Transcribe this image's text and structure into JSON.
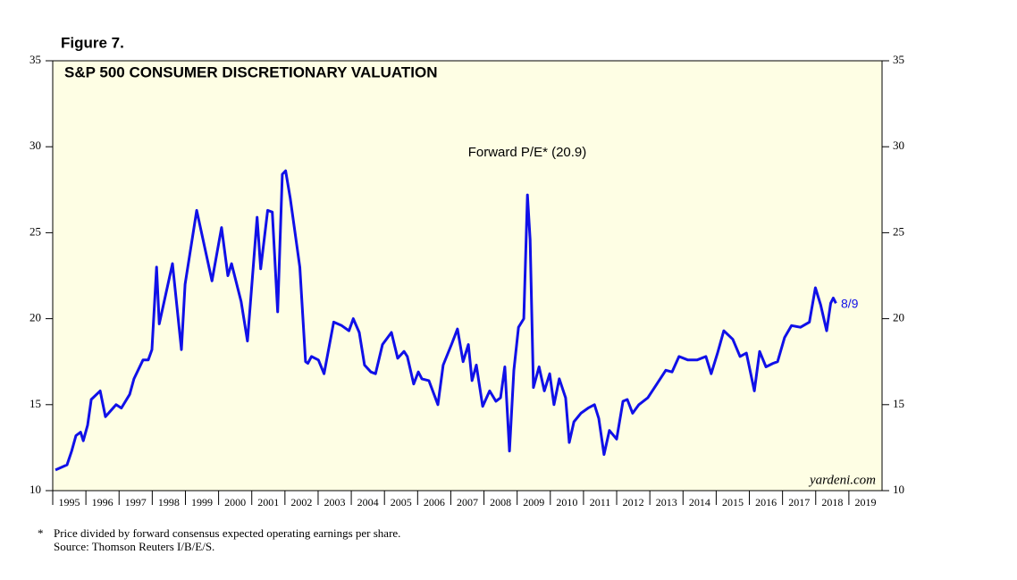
{
  "chart_data": {
    "type": "line",
    "figure_label": "Figure 7.",
    "title": "S&P 500 CONSUMER DISCRETIONARY VALUATION",
    "annotations": [
      "Forward P/E* (20.9)",
      "8/9"
    ],
    "watermark": "yardeni.com",
    "footnotes": [
      "*",
      "Price divided by forward consensus expected operating earnings per share.",
      "Source: Thomson Reuters I/B/E/S."
    ],
    "color": "#1010e8",
    "xlim": [
      1995,
      2020
    ],
    "xticks": [
      {
        "value": 1995,
        "label": "1995"
      },
      {
        "value": 1996,
        "label": "1996"
      },
      {
        "value": 1997,
        "label": "1997"
      },
      {
        "value": 1998,
        "label": "1998"
      },
      {
        "value": 1999,
        "label": "1999"
      },
      {
        "value": 2000,
        "label": "2000"
      },
      {
        "value": 2001,
        "label": "2001"
      },
      {
        "value": 2002,
        "label": "2002"
      },
      {
        "value": 2003,
        "label": "2003"
      },
      {
        "value": 2004,
        "label": "2004"
      },
      {
        "value": 2005,
        "label": "2005"
      },
      {
        "value": 2006,
        "label": "2006"
      },
      {
        "value": 2007,
        "label": "2007"
      },
      {
        "value": 2008,
        "label": "2008"
      },
      {
        "value": 2009,
        "label": "2009"
      },
      {
        "value": 2010,
        "label": "2010"
      },
      {
        "value": 2011,
        "label": "2011"
      },
      {
        "value": 2012,
        "label": "2012"
      },
      {
        "value": 2013,
        "label": "2013"
      },
      {
        "value": 2014,
        "label": "2014"
      },
      {
        "value": 2015,
        "label": "2015"
      },
      {
        "value": 2016,
        "label": "2016"
      },
      {
        "value": 2017,
        "label": "2017"
      },
      {
        "value": 2018,
        "label": "2018"
      },
      {
        "value": 2019,
        "label": "2019"
      }
    ],
    "ylim": [
      10,
      35
    ],
    "yticks": [
      10,
      15,
      20,
      25,
      30,
      35
    ],
    "x": [
      1995.08,
      1995.43,
      1995.57,
      1995.7,
      1995.84,
      1995.92,
      1996.05,
      1996.16,
      1996.43,
      1996.59,
      1996.91,
      1997.07,
      1997.32,
      1997.45,
      1997.72,
      1997.88,
      1997.99,
      1998.13,
      1998.21,
      1998.61,
      1998.88,
      1998.99,
      1999.34,
      1999.8,
      2000.09,
      2000.28,
      2000.39,
      2000.68,
      2000.87,
      2001.16,
      2001.27,
      2001.48,
      2001.62,
      2001.78,
      2001.92,
      2002.02,
      2002.16,
      2002.45,
      2002.62,
      2002.69,
      2002.8,
      2003.01,
      2003.18,
      2003.47,
      2003.71,
      2003.93,
      2004.06,
      2004.24,
      2004.4,
      2004.59,
      2004.73,
      2004.94,
      2005.21,
      2005.4,
      2005.59,
      2005.69,
      2005.88,
      2006.02,
      2006.13,
      2006.34,
      2006.61,
      2006.77,
      2007.02,
      2007.2,
      2007.37,
      2007.53,
      2007.64,
      2007.77,
      2007.96,
      2008.17,
      2008.36,
      2008.5,
      2008.63,
      2008.77,
      2008.9,
      2009.04,
      2009.2,
      2009.31,
      2009.39,
      2009.49,
      2009.66,
      2009.82,
      2009.98,
      2010.11,
      2010.27,
      2010.46,
      2010.57,
      2010.71,
      2010.92,
      2011.14,
      2011.33,
      2011.46,
      2011.62,
      2011.78,
      2012.0,
      2012.19,
      2012.32,
      2012.48,
      2012.67,
      2012.94,
      2013.21,
      2013.48,
      2013.67,
      2013.88,
      2014.15,
      2014.42,
      2014.69,
      2014.85,
      2015.04,
      2015.23,
      2015.5,
      2015.72,
      2015.91,
      2016.15,
      2016.31,
      2016.5,
      2016.71,
      2016.85,
      2017.06,
      2017.27,
      2017.54,
      2017.81,
      2017.99,
      2018.15,
      2018.33,
      2018.45,
      2018.53,
      2018.61
    ],
    "values": [
      11.2,
      11.5,
      12.3,
      13.2,
      13.4,
      12.9,
      13.8,
      15.3,
      15.8,
      14.3,
      15.0,
      14.8,
      15.6,
      16.5,
      17.6,
      17.6,
      18.2,
      23.0,
      19.7,
      23.2,
      18.2,
      22.0,
      26.3,
      22.2,
      25.3,
      22.5,
      23.2,
      21.0,
      18.7,
      25.9,
      22.9,
      26.3,
      26.2,
      20.4,
      28.4,
      28.6,
      27.0,
      23.0,
      17.5,
      17.4,
      17.8,
      17.6,
      16.8,
      19.8,
      19.6,
      19.3,
      20.0,
      19.2,
      17.3,
      16.9,
      16.8,
      18.5,
      19.2,
      17.7,
      18.1,
      17.8,
      16.2,
      16.9,
      16.5,
      16.4,
      15.0,
      17.3,
      18.5,
      19.4,
      17.5,
      18.5,
      16.4,
      17.3,
      14.9,
      15.8,
      15.2,
      15.4,
      17.2,
      12.3,
      17.0,
      19.5,
      20.0,
      27.2,
      24.6,
      16.0,
      17.2,
      15.8,
      16.8,
      15.0,
      16.5,
      15.4,
      12.8,
      14.0,
      14.5,
      14.8,
      15.0,
      14.2,
      12.1,
      13.5,
      13.0,
      15.2,
      15.3,
      14.5,
      15.0,
      15.4,
      16.2,
      17.0,
      16.9,
      17.8,
      17.6,
      17.6,
      17.8,
      16.8,
      18.0,
      19.3,
      18.8,
      17.8,
      18.0,
      15.8,
      18.1,
      17.2,
      17.4,
      17.5,
      18.9,
      19.6,
      19.5,
      19.8,
      21.8,
      20.8,
      19.3,
      20.9,
      21.2,
      20.9
    ]
  }
}
